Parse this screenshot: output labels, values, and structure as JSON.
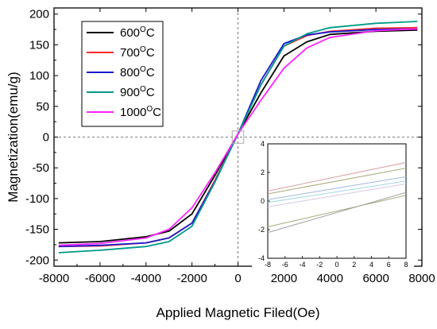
{
  "chart_data": [
    {
      "type": "line",
      "title": "",
      "xlabel": "Applied Magnetic Filed(Oe)",
      "ylabel": "Magnetization(emu/g)",
      "xlim": [
        -8000,
        8000
      ],
      "ylim": [
        -210,
        210
      ],
      "xticks": [
        "-8000",
        "-6000",
        "-4000",
        "-2000",
        "0",
        "2000",
        "4000",
        "6000",
        "8000"
      ],
      "yticks": [
        "-200",
        "-150",
        "-100",
        "-50",
        "0",
        "50",
        "100",
        "150",
        "200"
      ],
      "grid": false,
      "reference_lines": {
        "x": 0,
        "y": 0,
        "style": "dashed"
      },
      "legend": {
        "position": "top-left"
      },
      "series": [
        {
          "name": "600",
          "name_superscript": "O",
          "name_suffix": "C",
          "color": "#000000",
          "x": [
            -7800,
            -6000,
            -4000,
            -3000,
            -2000,
            -1000,
            0,
            1000,
            2000,
            3000,
            4000,
            6000,
            7800
          ],
          "y": [
            -172,
            -170,
            -162,
            -153,
            -125,
            -62,
            5,
            72,
            132,
            155,
            167,
            172,
            174
          ]
        },
        {
          "name": "700",
          "name_superscript": "O",
          "name_suffix": "C",
          "color": "#ff2a2a",
          "x": [
            -7800,
            -6000,
            -4000,
            -3000,
            -2000,
            -1000,
            0,
            1000,
            2000,
            3000,
            4000,
            6000,
            7800
          ],
          "y": [
            -178,
            -177,
            -172,
            -164,
            -140,
            -70,
            5,
            85,
            148,
            165,
            172,
            177,
            178
          ]
        },
        {
          "name": "800",
          "name_superscript": "O",
          "name_suffix": "C",
          "color": "#1a1acc",
          "x": [
            -7800,
            -6000,
            -4000,
            -3000,
            -2000,
            -1000,
            0,
            1000,
            2000,
            3000,
            4000,
            6000,
            7800
          ],
          "y": [
            -178,
            -176,
            -172,
            -164,
            -140,
            -72,
            5,
            92,
            152,
            166,
            171,
            175,
            176
          ]
        },
        {
          "name": "900",
          "name_superscript": "O",
          "name_suffix": "C",
          "color": "#009a8a",
          "x": [
            -7800,
            -6000,
            -4000,
            -3000,
            -2000,
            -1000,
            0,
            1000,
            2000,
            3000,
            4000,
            6000,
            7800
          ],
          "y": [
            -188,
            -184,
            -178,
            -170,
            -145,
            -73,
            5,
            85,
            148,
            168,
            178,
            185,
            188
          ]
        },
        {
          "name": "1000",
          "name_superscript": "O",
          "name_suffix": "C",
          "color": "#ff22ff",
          "x": [
            -7800,
            -6000,
            -4000,
            -3000,
            -2000,
            -1000,
            0,
            1000,
            2000,
            3000,
            4000,
            6000,
            7800
          ],
          "y": [
            -176,
            -173,
            -164,
            -150,
            -115,
            -58,
            5,
            60,
            112,
            145,
            162,
            173,
            176
          ]
        }
      ]
    },
    {
      "type": "line",
      "title": "",
      "xlim": [
        -8,
        8
      ],
      "ylim": [
        -4,
        4
      ],
      "xticks": [
        "-8",
        "-6",
        "-4",
        "-2",
        "0",
        "2",
        "4",
        "6",
        "8"
      ],
      "yticks": [
        "-4",
        "-2",
        "0",
        "2",
        "4"
      ],
      "grid": false,
      "series": [
        {
          "color": "#d9a0a0",
          "x": [
            -8,
            8
          ],
          "y": [
            0.7,
            2.7
          ]
        },
        {
          "color": "#a9a979",
          "x": [
            -8,
            8
          ],
          "y": [
            0.5,
            2.3
          ]
        },
        {
          "color": "#9fb7df",
          "x": [
            -8,
            8
          ],
          "y": [
            0.1,
            1.7
          ]
        },
        {
          "color": "#a0d8e8",
          "x": [
            -8,
            8
          ],
          "y": [
            -0.1,
            1.4
          ]
        },
        {
          "color": "#d6c6e6",
          "x": [
            -8,
            8
          ],
          "y": [
            -0.4,
            1.2
          ]
        },
        {
          "color": "#a9a979",
          "x": [
            -8,
            8
          ],
          "y": [
            -1.8,
            0.4
          ]
        },
        {
          "color": "#a0a0a0",
          "x": [
            -8,
            8
          ],
          "y": [
            -2.2,
            0.6
          ]
        }
      ]
    }
  ]
}
